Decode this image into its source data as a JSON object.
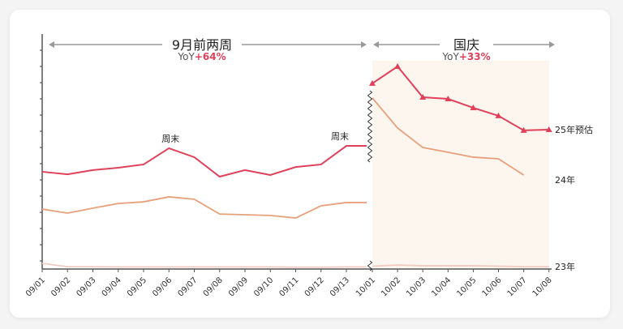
{
  "chart_data": {
    "type": "line",
    "title": "",
    "xlabel": "",
    "ylabel": "",
    "y_axis_labels_shown": false,
    "axis_break_between": [
      "09/13",
      "10/01"
    ],
    "ylim": [
      0,
      100
    ],
    "grid": false,
    "x": [
      "09/01",
      "09/02",
      "09/03",
      "09/04",
      "09/05",
      "09/06",
      "09/07",
      "09/08",
      "09/09",
      "09/10",
      "09/11",
      "09/12",
      "09/13",
      "10/01",
      "10/02",
      "10/03",
      "10/04",
      "10/05",
      "10/06",
      "10/07",
      "10/08"
    ],
    "series": [
      {
        "name": "25年预估",
        "color": "#e0405a",
        "marker_in_holiday": "triangle",
        "values": [
          41.4,
          40.3,
          42.1,
          43.1,
          44.5,
          51.4,
          47.6,
          39.3,
          42.1,
          40.0,
          43.4,
          44.5,
          52.4,
          79.0,
          86.2,
          73.1,
          72.4,
          68.6,
          65.2,
          59.0,
          59.3
        ]
      },
      {
        "name": "24年",
        "color": "#e8a07a",
        "values": [
          25.5,
          23.8,
          25.9,
          27.9,
          28.6,
          30.7,
          29.7,
          23.4,
          23.1,
          22.8,
          21.7,
          26.9,
          28.3,
          72.8,
          60.0,
          51.7,
          49.7,
          47.6,
          46.9,
          40.0,
          null
        ]
      },
      {
        "name": "23年",
        "color": "#f0cbc3",
        "values": [
          2.4,
          1.0,
          1.0,
          0.9,
          0.9,
          0.9,
          0.9,
          0.9,
          0.9,
          0.9,
          0.8,
          0.8,
          0.9,
          1.2,
          1.7,
          1.4,
          1.4,
          1.4,
          1.2,
          1.0,
          1.0
        ]
      }
    ],
    "annotations": [
      {
        "text": "周末",
        "at": "09/06"
      },
      {
        "text": "周末",
        "at": "09/13"
      }
    ],
    "periods": [
      {
        "label": "9月前两周",
        "yoy_prefix": "YoY",
        "yoy_value": "+64%",
        "range": [
          "09/01",
          "09/13"
        ]
      },
      {
        "label": "国庆",
        "yoy_prefix": "YoY",
        "yoy_value": "+33%",
        "range": [
          "10/01",
          "10/08"
        ],
        "shaded": true,
        "shade_color": "#fdf6ef"
      }
    ],
    "accent_color": "#e0405a"
  }
}
